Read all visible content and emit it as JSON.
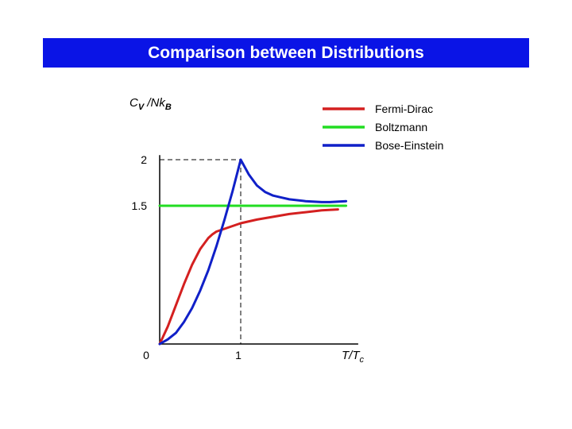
{
  "chart_data": {
    "type": "line",
    "title": "Comparison between Distributions",
    "ylabel": {
      "main": "C",
      "sub1": "V",
      "mid": " /Nk",
      "sub2": "B"
    },
    "xlabel": {
      "main": "T/T",
      "sub": "c"
    },
    "xlim": [
      0,
      2.45
    ],
    "ylim": [
      0,
      2.05
    ],
    "x_ticks": [
      {
        "value": 0,
        "label": "0"
      },
      {
        "value": 1,
        "label": "1"
      }
    ],
    "y_ticks": [
      {
        "value": 1.5,
        "label": "1.5"
      },
      {
        "value": 2,
        "label": "2"
      }
    ],
    "reference_lines": {
      "x": 1,
      "y": 2
    },
    "grid": false,
    "legend_position": "top-right",
    "series": [
      {
        "name": "Fermi-Dirac",
        "color": "#d42020",
        "x": [
          0,
          0.1,
          0.2,
          0.3,
          0.4,
          0.5,
          0.6,
          0.65,
          0.7,
          0.8,
          0.9,
          1.0,
          1.2,
          1.4,
          1.6,
          1.8,
          2.0,
          2.2
        ],
        "y": [
          0,
          0.19,
          0.42,
          0.65,
          0.86,
          1.03,
          1.15,
          1.19,
          1.22,
          1.25,
          1.28,
          1.31,
          1.35,
          1.38,
          1.41,
          1.43,
          1.45,
          1.46
        ]
      },
      {
        "name": "Boltzmann",
        "color": "#22dd22",
        "x": [
          0,
          2.3
        ],
        "y": [
          1.5,
          1.5
        ]
      },
      {
        "name": "Bose-Einstein",
        "color": "#1020c8",
        "x": [
          0,
          0.1,
          0.2,
          0.3,
          0.4,
          0.5,
          0.6,
          0.7,
          0.8,
          0.9,
          1.0,
          1.05,
          1.1,
          1.2,
          1.3,
          1.4,
          1.5,
          1.6,
          1.8,
          2.0,
          2.1,
          2.3
        ],
        "y": [
          0,
          0.05,
          0.12,
          0.24,
          0.39,
          0.58,
          0.8,
          1.06,
          1.35,
          1.66,
          2.0,
          1.92,
          1.84,
          1.72,
          1.65,
          1.61,
          1.59,
          1.57,
          1.55,
          1.54,
          1.54,
          1.55
        ]
      }
    ]
  }
}
